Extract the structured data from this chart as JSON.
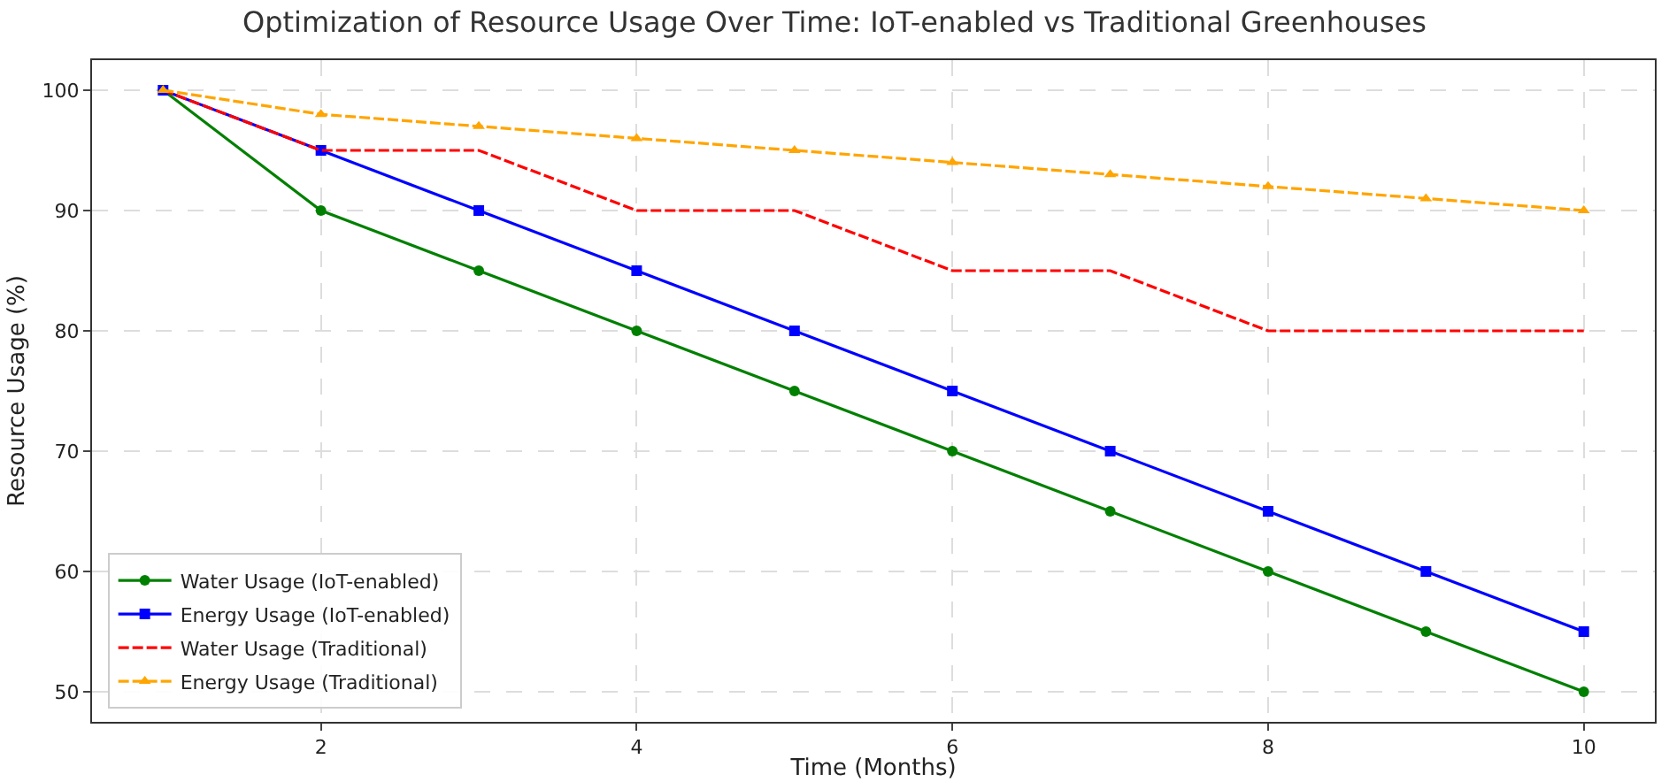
{
  "chart_data": {
    "type": "line",
    "title": "Optimization of Resource Usage Over Time: IoT-enabled vs Traditional Greenhouses",
    "xlabel": "Time (Months)",
    "ylabel": "Resource Usage (%)",
    "x": [
      1,
      2,
      3,
      4,
      5,
      6,
      7,
      8,
      9,
      10
    ],
    "series": [
      {
        "name": "Water Usage (IoT-enabled)",
        "color": "#008000",
        "marker": "circle",
        "line_style": "solid",
        "values": [
          100,
          90,
          85,
          80,
          75,
          70,
          65,
          60,
          55,
          50
        ]
      },
      {
        "name": "Energy Usage (IoT-enabled)",
        "color": "#0000ff",
        "marker": "square",
        "line_style": "solid",
        "values": [
          100,
          95,
          90,
          85,
          80,
          75,
          70,
          65,
          60,
          55
        ]
      },
      {
        "name": "Water Usage (Traditional)",
        "color": "#ff0000",
        "marker": "none",
        "line_style": "dashed",
        "values": [
          100,
          95,
          95,
          90,
          90,
          85,
          85,
          80,
          80,
          80
        ]
      },
      {
        "name": "Energy Usage (Traditional)",
        "color": "#ffa500",
        "marker": "triangle",
        "line_style": "dashed",
        "values": [
          100,
          98,
          97,
          96,
          95,
          94,
          93,
          92,
          91,
          90
        ]
      }
    ],
    "xlim": [
      0.55,
      10.45
    ],
    "xticks": [
      2,
      4,
      6,
      8,
      10
    ],
    "ylim": [
      47.5,
      102.5
    ],
    "yticks": [
      50,
      60,
      70,
      80,
      90,
      100
    ],
    "grid": true,
    "legend": "bottom left"
  }
}
